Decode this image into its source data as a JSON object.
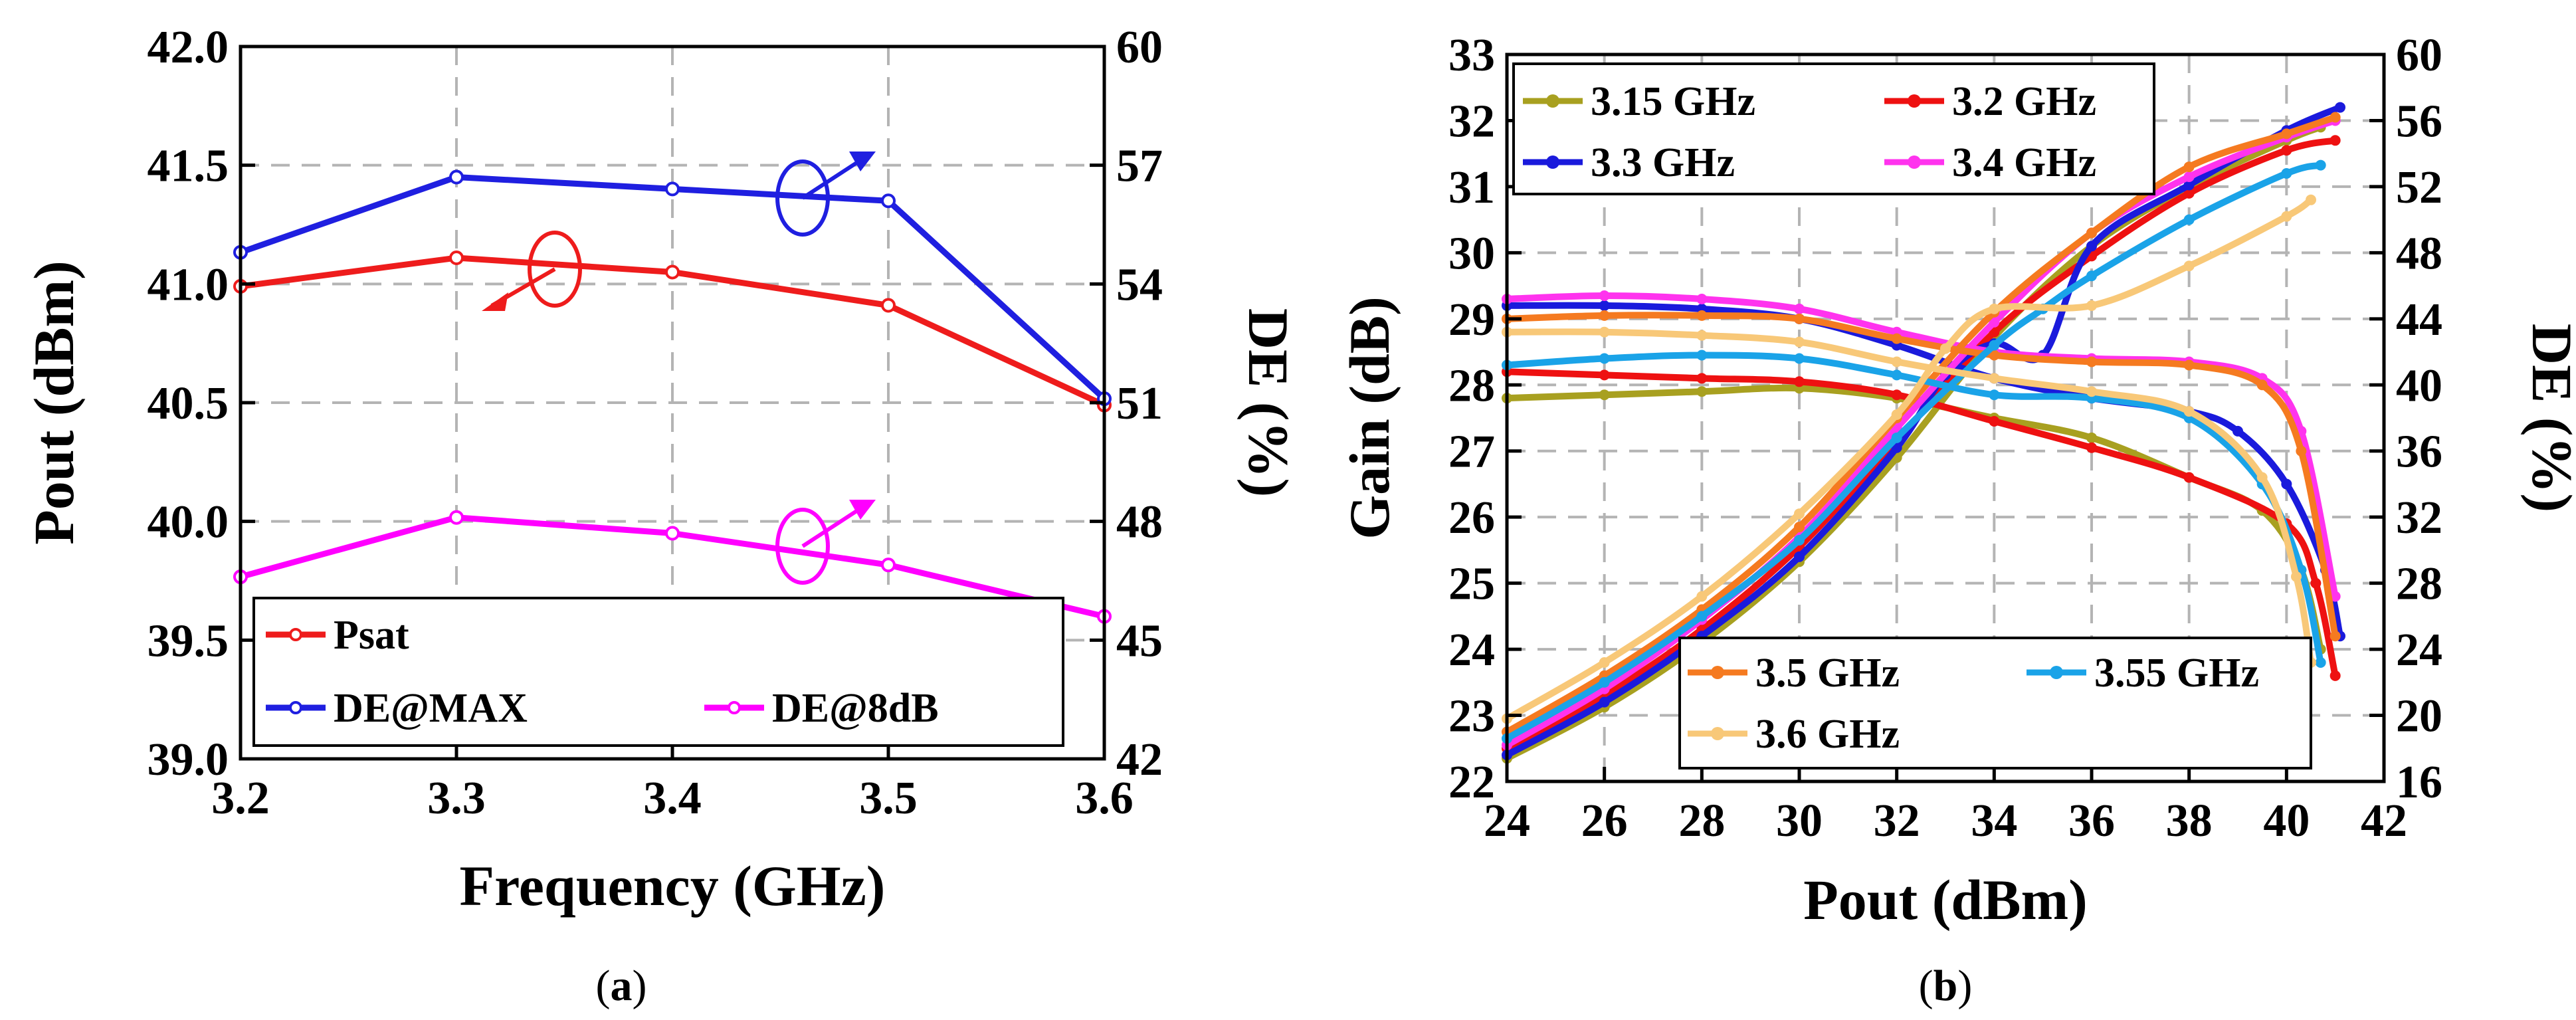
{
  "chart_data": [
    {
      "panel": "a",
      "caption": "(a)",
      "type": "line",
      "xlabel": "Frequency (GHz)",
      "ylabel": "Pout (dBm)",
      "y2label": "DE (%)",
      "xlim": [
        3.2,
        3.6
      ],
      "ylim": [
        39.0,
        42.0
      ],
      "y2lim": [
        42,
        60
      ],
      "xticks": [
        "3.2",
        "3.3",
        "3.4",
        "3.5",
        "3.6"
      ],
      "yticks": [
        "39.0",
        "39.5",
        "40.0",
        "40.5",
        "41.0",
        "41.5",
        "42.0"
      ],
      "y2ticks": [
        "42",
        "45",
        "48",
        "51",
        "54",
        "57",
        "60"
      ],
      "grid": true,
      "legend_position": "bottom",
      "x": [
        3.2,
        3.3,
        3.4,
        3.5,
        3.6
      ],
      "series": [
        {
          "name": "Psat",
          "axis": "left",
          "color": "#ee1c1c",
          "values": [
            40.99,
            41.11,
            41.05,
            40.91,
            40.49
          ]
        },
        {
          "name": "DE@MAX",
          "axis": "right",
          "color": "#1f1fe0",
          "values": [
            54.8,
            56.7,
            56.4,
            56.1,
            51.1
          ]
        },
        {
          "name": "DE@8dB",
          "axis": "right",
          "color": "#ff00ff",
          "values": [
            46.6,
            48.1,
            47.7,
            46.9,
            45.6
          ]
        }
      ]
    },
    {
      "panel": "b",
      "caption": "(b)",
      "type": "line",
      "xlabel": "Pout (dBm)",
      "ylabel": "Gain (dB)",
      "y2label": "DE (%)",
      "xlim": [
        24,
        42
      ],
      "ylim": [
        22,
        33
      ],
      "y2lim": [
        16,
        60
      ],
      "xticks": [
        "24",
        "26",
        "28",
        "30",
        "32",
        "34",
        "36",
        "38",
        "40",
        "42"
      ],
      "yticks": [
        "22",
        "23",
        "24",
        "25",
        "26",
        "27",
        "28",
        "29",
        "30",
        "31",
        "32",
        "33"
      ],
      "y2ticks": [
        "16",
        "20",
        "24",
        "28",
        "32",
        "36",
        "40",
        "44",
        "48",
        "52",
        "56",
        "60"
      ],
      "grid": true,
      "legend_position": "top-left and bottom-right",
      "series": [
        {
          "name": "3.15 GHz",
          "color": "#a8a020",
          "gain": [
            [
              24,
              27.8
            ],
            [
              26,
              27.85
            ],
            [
              28,
              27.9
            ],
            [
              30,
              27.95
            ],
            [
              32,
              27.8
            ],
            [
              34,
              27.5
            ],
            [
              36,
              27.2
            ],
            [
              38,
              26.6
            ],
            [
              39.5,
              26.1
            ],
            [
              40.3,
              25.2
            ],
            [
              40.7,
              24.0
            ]
          ],
          "de": [
            [
              24,
              17.4
            ],
            [
              26,
              20.5
            ],
            [
              28,
              24.4
            ],
            [
              30,
              29.3
            ],
            [
              32,
              35.6
            ],
            [
              34,
              42.9
            ],
            [
              36,
              48.4
            ],
            [
              38,
              52.0
            ],
            [
              40,
              54.8
            ],
            [
              40.7,
              55.6
            ]
          ]
        },
        {
          "name": "3.2 GHz",
          "color": "#ee1111",
          "gain": [
            [
              24,
              28.2
            ],
            [
              26,
              28.15
            ],
            [
              28,
              28.1
            ],
            [
              30,
              28.05
            ],
            [
              32,
              27.85
            ],
            [
              34,
              27.45
            ],
            [
              36,
              27.05
            ],
            [
              38,
              26.6
            ],
            [
              40,
              25.9
            ],
            [
              40.6,
              25.0
            ],
            [
              41,
              23.6
            ]
          ],
          "de": [
            [
              24,
              18.0
            ],
            [
              26,
              21.2
            ],
            [
              28,
              25.2
            ],
            [
              30,
              30.2
            ],
            [
              32,
              36.6
            ],
            [
              34,
              43.2
            ],
            [
              36,
              47.8
            ],
            [
              38,
              51.6
            ],
            [
              40,
              54.2
            ],
            [
              41,
              54.8
            ]
          ]
        },
        {
          "name": "3.3 GHz",
          "color": "#1a1adc",
          "gain": [
            [
              24,
              29.2
            ],
            [
              26,
              29.2
            ],
            [
              28,
              29.15
            ],
            [
              30,
              29.0
            ],
            [
              32,
              28.6
            ],
            [
              34,
              28.1
            ],
            [
              36,
              27.8
            ],
            [
              38,
              27.6
            ],
            [
              39,
              27.3
            ],
            [
              40,
              26.5
            ],
            [
              40.8,
              25.2
            ],
            [
              41.1,
              24.2
            ]
          ],
          "de": [
            [
              24,
              17.6
            ],
            [
              26,
              20.8
            ],
            [
              28,
              24.8
            ],
            [
              30,
              29.6
            ],
            [
              32,
              36.2
            ],
            [
              33,
              40.6
            ],
            [
              34,
              42.5
            ],
            [
              35,
              41.8
            ],
            [
              36,
              48.4
            ],
            [
              38,
              52.1
            ],
            [
              40,
              55.4
            ],
            [
              41.1,
              56.8
            ]
          ]
        },
        {
          "name": "3.4 GHz",
          "color": "#ff33ee",
          "gain": [
            [
              24,
              29.3
            ],
            [
              26,
              29.35
            ],
            [
              28,
              29.3
            ],
            [
              30,
              29.15
            ],
            [
              32,
              28.8
            ],
            [
              34,
              28.5
            ],
            [
              36,
              28.4
            ],
            [
              38,
              28.35
            ],
            [
              39.5,
              28.1
            ],
            [
              40.3,
              27.3
            ],
            [
              41,
              24.8
            ]
          ],
          "de": [
            [
              24,
              18.2
            ],
            [
              26,
              21.6
            ],
            [
              28,
              25.8
            ],
            [
              30,
              30.8
            ],
            [
              32,
              37.4
            ],
            [
              34,
              43.8
            ],
            [
              36,
              49.2
            ],
            [
              38,
              52.6
            ],
            [
              40,
              55.0
            ],
            [
              41,
              56.0
            ]
          ]
        },
        {
          "name": "3.5 GHz",
          "color": "#f57a20",
          "gain": [
            [
              24,
              29.0
            ],
            [
              26,
              29.05
            ],
            [
              28,
              29.05
            ],
            [
              30,
              29.0
            ],
            [
              32,
              28.7
            ],
            [
              34,
              28.45
            ],
            [
              36,
              28.35
            ],
            [
              38,
              28.3
            ],
            [
              39.5,
              28.0
            ],
            [
              40.3,
              27.0
            ],
            [
              41,
              24.2
            ]
          ],
          "de": [
            [
              24,
              19.0
            ],
            [
              26,
              22.4
            ],
            [
              28,
              26.4
            ],
            [
              30,
              31.4
            ],
            [
              32,
              38.0
            ],
            [
              34,
              44.4
            ],
            [
              36,
              49.2
            ],
            [
              38,
              53.2
            ],
            [
              40,
              55.2
            ],
            [
              41,
              56.2
            ]
          ]
        },
        {
          "name": "3.55 GHz",
          "color": "#1aa3e8",
          "gain": [
            [
              24,
              28.3
            ],
            [
              26,
              28.4
            ],
            [
              28,
              28.45
            ],
            [
              30,
              28.4
            ],
            [
              32,
              28.15
            ],
            [
              34,
              27.85
            ],
            [
              36,
              27.8
            ],
            [
              38,
              27.5
            ],
            [
              39.5,
              26.5
            ],
            [
              40.3,
              25.2
            ],
            [
              40.7,
              23.8
            ]
          ],
          "de": [
            [
              24,
              18.6
            ],
            [
              26,
              22.0
            ],
            [
              28,
              26.0
            ],
            [
              30,
              30.6
            ],
            [
              32,
              36.8
            ],
            [
              34,
              42.4
            ],
            [
              35,
              44.6
            ],
            [
              36,
              46.6
            ],
            [
              38,
              50.0
            ],
            [
              40,
              52.8
            ],
            [
              40.7,
              53.3
            ]
          ]
        },
        {
          "name": "3.6 GHz",
          "color": "#f8c878",
          "gain": [
            [
              24,
              28.8
            ],
            [
              26,
              28.8
            ],
            [
              28,
              28.75
            ],
            [
              30,
              28.65
            ],
            [
              32,
              28.35
            ],
            [
              34,
              28.1
            ],
            [
              36,
              27.9
            ],
            [
              38,
              27.6
            ],
            [
              39.5,
              26.6
            ],
            [
              40.2,
              25.1
            ],
            [
              40.5,
              23.8
            ]
          ],
          "de": [
            [
              24,
              19.8
            ],
            [
              26,
              23.2
            ],
            [
              28,
              27.2
            ],
            [
              30,
              32.2
            ],
            [
              32,
              38.2
            ],
            [
              33,
              42.2
            ],
            [
              34,
              44.6
            ],
            [
              36,
              44.8
            ],
            [
              38,
              47.2
            ],
            [
              40,
              50.2
            ],
            [
              40.5,
              51.2
            ]
          ]
        }
      ]
    }
  ]
}
